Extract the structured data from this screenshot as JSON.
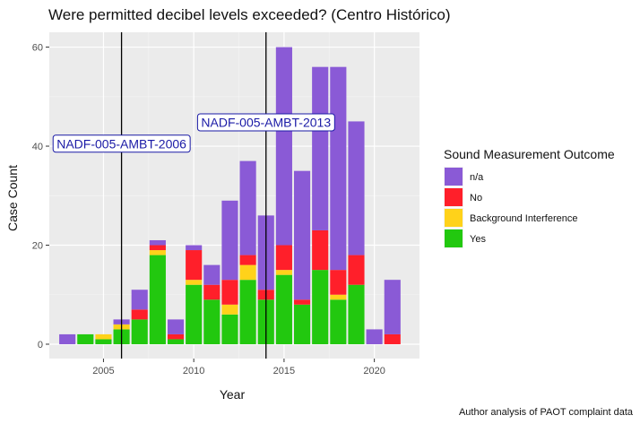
{
  "chart_data": {
    "type": "bar",
    "stacked": true,
    "title": "Were permitted decibel levels exceeded? (Centro Histórico)",
    "xlabel": "Year",
    "ylabel": "Case Count",
    "caption": "Author analysis of PAOT complaint data",
    "xlim": [
      2002,
      2022.5
    ],
    "ylim": [
      -2.9,
      63
    ],
    "x_ticks": [
      2005,
      2010,
      2015,
      2020
    ],
    "y_ticks": [
      0,
      20,
      40,
      60
    ],
    "grid": true,
    "legend_position": "right",
    "legend": {
      "title": "Sound Measurement Outcome",
      "entries": [
        "n/a",
        "No",
        "Background Interference",
        "Yes"
      ]
    },
    "series_colors": {
      "Yes": "#22c80f",
      "Background Interference": "#ffd21a",
      "No": "#ff1f2a",
      "n/a": "#8a5ad6"
    },
    "x": [
      2003,
      2004,
      2005,
      2006,
      2007,
      2008,
      2009,
      2010,
      2011,
      2012,
      2013,
      2014,
      2015,
      2016,
      2017,
      2018,
      2019,
      2020,
      2021
    ],
    "series": [
      {
        "name": "Yes",
        "values": [
          0,
          2,
          1,
          3,
          5,
          18,
          1,
          12,
          9,
          6,
          13,
          9,
          14,
          8,
          15,
          9,
          12,
          0,
          0
        ]
      },
      {
        "name": "Background Interference",
        "values": [
          0,
          0,
          1,
          1,
          0,
          1,
          0,
          1,
          0,
          2,
          3,
          0,
          1,
          0,
          0,
          1,
          0,
          0,
          0
        ]
      },
      {
        "name": "No",
        "values": [
          0,
          0,
          0,
          0,
          2,
          1,
          1,
          6,
          3,
          5,
          2,
          2,
          5,
          1,
          8,
          5,
          6,
          0,
          2
        ]
      },
      {
        "name": "n/a",
        "values": [
          2,
          0,
          0,
          1,
          4,
          1,
          3,
          1,
          4,
          16,
          19,
          15,
          40,
          26,
          33,
          41,
          27,
          3,
          11
        ]
      }
    ],
    "reference_lines": [
      {
        "x": 2006,
        "label": "NADF-005-AMBT-2006",
        "label_y": 40.5
      },
      {
        "x": 2014,
        "label": "NADF-005-AMBT-2013",
        "label_y": 44.8
      }
    ],
    "colors": {
      "panel_bg": "#ebebeb",
      "grid_major": "#ffffff",
      "annotation_text": "#1a1aa6",
      "annotation_border": "#1a1aa6"
    }
  }
}
